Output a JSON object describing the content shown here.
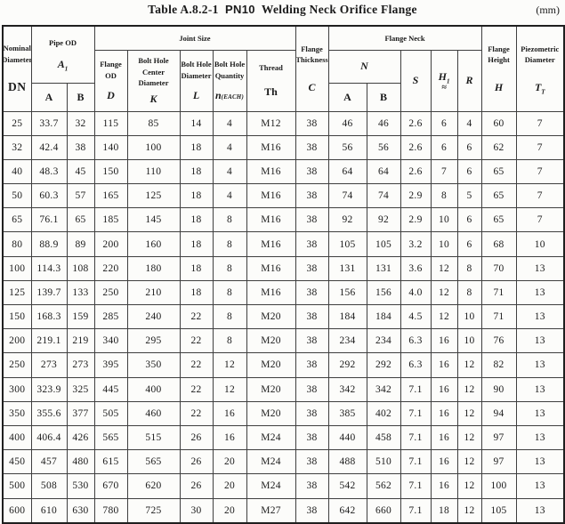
{
  "title": {
    "table_ref": "Table A.8.2-1",
    "class_code": "PN10",
    "name": "Welding Neck Orifice Flange",
    "unit": "(mm)"
  },
  "header": {
    "nominal_diameter": {
      "label": "Nominal\nDiameter",
      "symbol": "DN"
    },
    "pipe_od": {
      "label": "Pipe OD",
      "symbol": "A",
      "subscript": "1"
    },
    "joint_size": {
      "label": "Joint Size"
    },
    "flange_od": {
      "label": "Flange OD",
      "symbol": "D"
    },
    "bolt_hole_center": {
      "label": "Bolt Hole\nCenter\nDiameter",
      "symbol": "K"
    },
    "bolt_hole_diameter": {
      "label": "Bolt Hole\nDiameter",
      "symbol": "L"
    },
    "bolt_hole_quantity": {
      "label": "Bolt Hole\nQuantity",
      "symbol": "n",
      "qualifier": "(EACH)"
    },
    "thread": {
      "label": "Thread",
      "symbol": "Th"
    },
    "flange_thickness": {
      "label": "Flange\nThickness",
      "symbol": "C"
    },
    "flange_neck": {
      "label": "Flange Neck"
    },
    "neck_n": {
      "symbol": "N"
    },
    "neck_s": {
      "symbol": "S"
    },
    "neck_h1": {
      "symbol": "H",
      "subscript": "1",
      "approx": "≈"
    },
    "neck_r": {
      "symbol": "R"
    },
    "flange_height": {
      "label": "Flange\nHeight",
      "symbol": "H"
    },
    "piezometric": {
      "label": "Piezometric\nDiameter",
      "symbol": "T",
      "subscript": "T"
    },
    "sub_a": "A",
    "sub_b": "B"
  },
  "table": {
    "column_keys": [
      "dn",
      "pipe-od-a",
      "pipe-od-b",
      "flange-od-d",
      "bolt-center-k",
      "bolt-dia-l",
      "bolt-qty-n",
      "thread-th",
      "thickness-c",
      "neck-n-a",
      "neck-n-b",
      "neck-s",
      "neck-h1",
      "neck-r",
      "height-h",
      "piezo-tt"
    ],
    "rows": [
      [
        "25",
        "33.7",
        "32",
        "115",
        "85",
        "14",
        "4",
        "M12",
        "38",
        "46",
        "46",
        "2.6",
        "6",
        "4",
        "60",
        "7"
      ],
      [
        "32",
        "42.4",
        "38",
        "140",
        "100",
        "18",
        "4",
        "M16",
        "38",
        "56",
        "56",
        "2.6",
        "6",
        "6",
        "62",
        "7"
      ],
      [
        "40",
        "48.3",
        "45",
        "150",
        "110",
        "18",
        "4",
        "M16",
        "38",
        "64",
        "64",
        "2.6",
        "7",
        "6",
        "65",
        "7"
      ],
      [
        "50",
        "60.3",
        "57",
        "165",
        "125",
        "18",
        "4",
        "M16",
        "38",
        "74",
        "74",
        "2.9",
        "8",
        "5",
        "65",
        "7"
      ],
      [
        "65",
        "76.1",
        "65",
        "185",
        "145",
        "18",
        "8",
        "M16",
        "38",
        "92",
        "92",
        "2.9",
        "10",
        "6",
        "65",
        "7"
      ],
      [
        "80",
        "88.9",
        "89",
        "200",
        "160",
        "18",
        "8",
        "M16",
        "38",
        "105",
        "105",
        "3.2",
        "10",
        "6",
        "68",
        "10"
      ],
      [
        "100",
        "114.3",
        "108",
        "220",
        "180",
        "18",
        "8",
        "M16",
        "38",
        "131",
        "131",
        "3.6",
        "12",
        "8",
        "70",
        "13"
      ],
      [
        "125",
        "139.7",
        "133",
        "250",
        "210",
        "18",
        "8",
        "M16",
        "38",
        "156",
        "156",
        "4.0",
        "12",
        "8",
        "71",
        "13"
      ],
      [
        "150",
        "168.3",
        "159",
        "285",
        "240",
        "22",
        "8",
        "M20",
        "38",
        "184",
        "184",
        "4.5",
        "12",
        "10",
        "71",
        "13"
      ],
      [
        "200",
        "219.1",
        "219",
        "340",
        "295",
        "22",
        "8",
        "M20",
        "38",
        "234",
        "234",
        "6.3",
        "16",
        "10",
        "76",
        "13"
      ],
      [
        "250",
        "273",
        "273",
        "395",
        "350",
        "22",
        "12",
        "M20",
        "38",
        "292",
        "292",
        "6.3",
        "16",
        "12",
        "82",
        "13"
      ],
      [
        "300",
        "323.9",
        "325",
        "445",
        "400",
        "22",
        "12",
        "M20",
        "38",
        "342",
        "342",
        "7.1",
        "16",
        "12",
        "90",
        "13"
      ],
      [
        "350",
        "355.6",
        "377",
        "505",
        "460",
        "22",
        "16",
        "M20",
        "38",
        "385",
        "402",
        "7.1",
        "16",
        "12",
        "94",
        "13"
      ],
      [
        "400",
        "406.4",
        "426",
        "565",
        "515",
        "26",
        "16",
        "M24",
        "38",
        "440",
        "458",
        "7.1",
        "16",
        "12",
        "97",
        "13"
      ],
      [
        "450",
        "457",
        "480",
        "615",
        "565",
        "26",
        "20",
        "M24",
        "38",
        "488",
        "510",
        "7.1",
        "16",
        "12",
        "97",
        "13"
      ],
      [
        "500",
        "508",
        "530",
        "670",
        "620",
        "26",
        "20",
        "M24",
        "38",
        "542",
        "562",
        "7.1",
        "16",
        "12",
        "100",
        "13"
      ],
      [
        "600",
        "610",
        "630",
        "780",
        "725",
        "30",
        "20",
        "M27",
        "38",
        "642",
        "660",
        "7.1",
        "18",
        "12",
        "105",
        "13"
      ]
    ]
  }
}
